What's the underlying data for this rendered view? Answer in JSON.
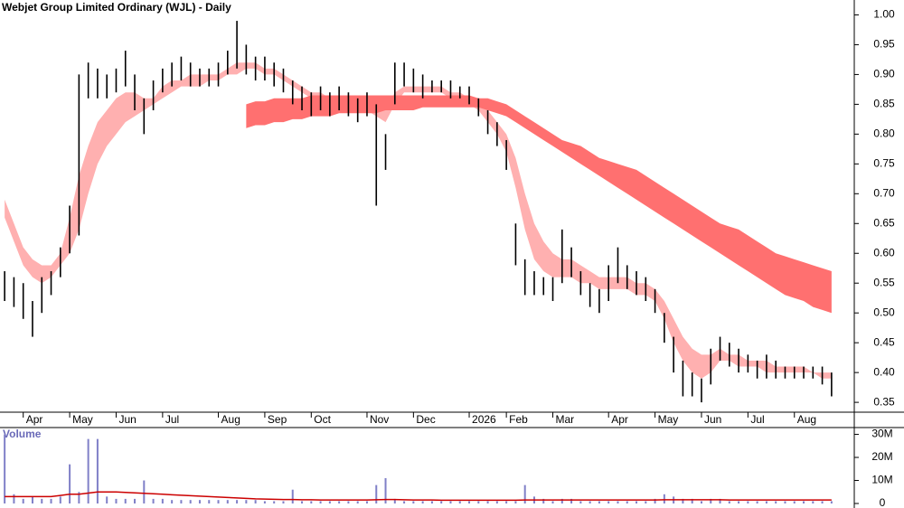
{
  "chart_data": {
    "type": "range_bar",
    "title": "Webjet Group Limited Ordinary (WJL) - Daily",
    "categories": [
      null,
      null,
      "Apr",
      null,
      null,
      null,
      null,
      "May",
      null,
      null,
      null,
      null,
      "Jun",
      null,
      null,
      null,
      null,
      "Jul",
      null,
      null,
      null,
      null,
      null,
      "Aug",
      null,
      null,
      null,
      null,
      "Sep",
      null,
      null,
      null,
      null,
      "Oct",
      null,
      null,
      null,
      null,
      null,
      "Nov",
      null,
      null,
      null,
      null,
      "Dec",
      null,
      null,
      null,
      null,
      null,
      "2026",
      null,
      null,
      null,
      "Feb",
      null,
      null,
      null,
      null,
      "Mar",
      null,
      null,
      null,
      null,
      null,
      "Apr",
      null,
      null,
      null,
      null,
      "May",
      null,
      null,
      null,
      null,
      "Jun",
      null,
      null,
      null,
      null,
      "Jul",
      null,
      null,
      null,
      null,
      "Aug",
      null,
      null,
      null,
      null
    ],
    "high": [
      0.57,
      0.56,
      0.55,
      0.52,
      0.56,
      0.57,
      0.61,
      0.68,
      0.9,
      0.92,
      0.91,
      0.9,
      0.91,
      0.94,
      0.9,
      0.86,
      0.89,
      0.91,
      0.92,
      0.93,
      0.92,
      0.91,
      0.91,
      0.92,
      0.94,
      0.99,
      0.95,
      0.93,
      0.93,
      0.92,
      0.91,
      0.89,
      0.88,
      0.87,
      0.88,
      0.87,
      0.88,
      0.87,
      0.86,
      0.87,
      0.85,
      0.8,
      0.92,
      0.92,
      0.91,
      0.9,
      0.89,
      0.89,
      0.89,
      0.88,
      0.88,
      0.86,
      0.84,
      0.82,
      0.79,
      0.65,
      0.59,
      0.57,
      0.56,
      0.56,
      0.64,
      0.61,
      0.57,
      0.55,
      0.54,
      0.58,
      0.61,
      0.58,
      0.57,
      0.56,
      0.54,
      0.5,
      0.46,
      0.42,
      0.4,
      0.39,
      0.44,
      0.46,
      0.45,
      0.44,
      0.43,
      0.42,
      0.43,
      0.42,
      0.41,
      0.41,
      0.41,
      0.41,
      0.41,
      0.4
    ],
    "low": [
      0.52,
      0.51,
      0.49,
      0.46,
      0.5,
      0.53,
      0.56,
      0.6,
      0.63,
      0.86,
      0.86,
      0.86,
      0.87,
      0.88,
      0.84,
      0.8,
      0.84,
      0.87,
      0.88,
      0.89,
      0.88,
      0.88,
      0.88,
      0.88,
      0.9,
      0.91,
      0.9,
      0.89,
      0.89,
      0.88,
      0.87,
      0.85,
      0.84,
      0.83,
      0.84,
      0.83,
      0.84,
      0.83,
      0.82,
      0.83,
      0.68,
      0.74,
      0.85,
      0.88,
      0.87,
      0.86,
      0.87,
      0.87,
      0.86,
      0.86,
      0.85,
      0.83,
      0.8,
      0.78,
      0.74,
      0.58,
      0.53,
      0.53,
      0.53,
      0.52,
      0.55,
      0.56,
      0.53,
      0.51,
      0.5,
      0.52,
      0.55,
      0.54,
      0.53,
      0.52,
      0.5,
      0.45,
      0.4,
      0.36,
      0.36,
      0.35,
      0.38,
      0.42,
      0.41,
      0.4,
      0.4,
      0.39,
      0.39,
      0.39,
      0.39,
      0.39,
      0.39,
      0.39,
      0.38,
      0.36
    ],
    "color": "#000000",
    "bands": [
      {
        "color": "#ffb0b0",
        "upper": [
          0.69,
          0.65,
          0.61,
          0.59,
          0.58,
          0.58,
          0.6,
          0.66,
          0.73,
          0.78,
          0.82,
          0.84,
          0.86,
          0.87,
          0.87,
          0.86,
          0.86,
          0.88,
          0.89,
          0.89,
          0.9,
          0.9,
          0.9,
          0.9,
          0.91,
          0.92,
          0.92,
          0.92,
          0.91,
          0.91,
          0.9,
          0.89,
          0.88,
          0.87,
          0.87,
          0.86,
          0.86,
          0.86,
          0.85,
          0.85,
          0.84,
          0.84,
          0.87,
          0.88,
          0.88,
          0.88,
          0.88,
          0.88,
          0.87,
          0.87,
          0.86,
          0.85,
          0.84,
          0.82,
          0.8,
          0.76,
          0.7,
          0.65,
          0.62,
          0.6,
          0.59,
          0.59,
          0.58,
          0.57,
          0.56,
          0.56,
          0.56,
          0.56,
          0.55,
          0.55,
          0.54,
          0.52,
          0.49,
          0.46,
          0.44,
          0.43,
          0.43,
          0.44,
          0.43,
          0.43,
          0.42,
          0.42,
          0.42,
          0.41,
          0.41,
          0.41,
          0.41,
          0.4,
          0.4,
          0.4
        ],
        "lower": [
          0.66,
          0.62,
          0.58,
          0.56,
          0.55,
          0.56,
          0.58,
          0.6,
          0.64,
          0.7,
          0.75,
          0.78,
          0.8,
          0.82,
          0.83,
          0.84,
          0.85,
          0.86,
          0.87,
          0.88,
          0.88,
          0.88,
          0.89,
          0.89,
          0.9,
          0.9,
          0.91,
          0.91,
          0.9,
          0.9,
          0.89,
          0.88,
          0.87,
          0.86,
          0.85,
          0.85,
          0.85,
          0.84,
          0.84,
          0.84,
          0.83,
          0.82,
          0.85,
          0.87,
          0.87,
          0.87,
          0.87,
          0.87,
          0.86,
          0.86,
          0.85,
          0.84,
          0.82,
          0.8,
          0.77,
          0.71,
          0.64,
          0.59,
          0.57,
          0.56,
          0.56,
          0.56,
          0.55,
          0.55,
          0.54,
          0.54,
          0.54,
          0.54,
          0.53,
          0.53,
          0.52,
          0.49,
          0.45,
          0.42,
          0.4,
          0.39,
          0.4,
          0.42,
          0.42,
          0.41,
          0.41,
          0.41,
          0.4,
          0.4,
          0.4,
          0.4,
          0.4,
          0.4,
          0.39,
          0.39
        ]
      },
      {
        "color": "#ff7070",
        "upper": [
          null,
          null,
          null,
          null,
          null,
          null,
          null,
          null,
          null,
          null,
          null,
          null,
          null,
          null,
          null,
          null,
          null,
          null,
          null,
          null,
          null,
          null,
          null,
          null,
          null,
          null,
          0.85,
          0.855,
          0.855,
          0.86,
          0.86,
          0.86,
          0.86,
          0.865,
          0.865,
          0.865,
          0.865,
          0.865,
          0.865,
          0.865,
          0.865,
          0.865,
          0.865,
          0.865,
          0.865,
          0.865,
          0.865,
          0.865,
          0.865,
          0.865,
          0.865,
          0.86,
          0.86,
          0.855,
          0.85,
          0.84,
          0.83,
          0.82,
          0.81,
          0.8,
          0.79,
          0.785,
          0.78,
          0.77,
          0.76,
          0.755,
          0.75,
          0.745,
          0.74,
          0.73,
          0.72,
          0.71,
          0.7,
          0.69,
          0.68,
          0.67,
          0.66,
          0.65,
          0.645,
          0.64,
          0.63,
          0.62,
          0.61,
          0.6,
          0.595,
          0.59,
          0.585,
          0.58,
          0.575,
          0.57
        ],
        "lower": [
          null,
          null,
          null,
          null,
          null,
          null,
          null,
          null,
          null,
          null,
          null,
          null,
          null,
          null,
          null,
          null,
          null,
          null,
          null,
          null,
          null,
          null,
          null,
          null,
          null,
          null,
          0.81,
          0.815,
          0.815,
          0.82,
          0.82,
          0.825,
          0.825,
          0.83,
          0.83,
          0.83,
          0.835,
          0.835,
          0.835,
          0.835,
          0.835,
          0.84,
          0.84,
          0.84,
          0.84,
          0.845,
          0.845,
          0.845,
          0.845,
          0.845,
          0.845,
          0.845,
          0.84,
          0.835,
          0.83,
          0.82,
          0.81,
          0.8,
          0.79,
          0.78,
          0.77,
          0.76,
          0.75,
          0.74,
          0.73,
          0.72,
          0.71,
          0.7,
          0.69,
          0.68,
          0.67,
          0.66,
          0.65,
          0.64,
          0.63,
          0.62,
          0.61,
          0.6,
          0.59,
          0.58,
          0.57,
          0.56,
          0.55,
          0.54,
          0.53,
          0.525,
          0.52,
          0.51,
          0.505,
          0.5
        ]
      }
    ],
    "ylim": [
      0.335,
      1.025
    ],
    "yticks": [
      {
        "value": 1.0,
        "label": "1.00"
      },
      {
        "value": 0.95,
        "label": "0.95"
      },
      {
        "value": 0.9,
        "label": "0.90"
      },
      {
        "value": 0.85,
        "label": "0.85"
      },
      {
        "value": 0.8,
        "label": "0.80"
      },
      {
        "value": 0.75,
        "label": "0.75"
      },
      {
        "value": 0.7,
        "label": "0.70"
      },
      {
        "value": 0.65,
        "label": "0.65"
      },
      {
        "value": 0.6,
        "label": "0.60"
      },
      {
        "value": 0.55,
        "label": "0.55"
      },
      {
        "value": 0.5,
        "label": "0.50"
      },
      {
        "value": 0.45,
        "label": "0.45"
      },
      {
        "value": 0.4,
        "label": "0.40"
      },
      {
        "value": 0.35,
        "label": "0.35"
      }
    ],
    "volume_label": "Volume",
    "volume": [
      30,
      4,
      2,
      3,
      2,
      2,
      3,
      17,
      5,
      28,
      28,
      3,
      2,
      2,
      2,
      10,
      2,
      2,
      1.5,
      1.5,
      1.5,
      1.5,
      1.5,
      1.5,
      1.5,
      1.5,
      1.5,
      1.5,
      1,
      1,
      1,
      6,
      1,
      1,
      1,
      1,
      1,
      1,
      1,
      1,
      8,
      11,
      2,
      1,
      1,
      1,
      1,
      1,
      1,
      1,
      1,
      1,
      1,
      1,
      1,
      1,
      8,
      3,
      2,
      1,
      2,
      2,
      1,
      1,
      1,
      1,
      1,
      1,
      1,
      1,
      2,
      4,
      3,
      2,
      2,
      1,
      2,
      2,
      1,
      1,
      1,
      1,
      1,
      1,
      1,
      1,
      1,
      1,
      1,
      1
    ],
    "volume_color": "#8080c8",
    "volume_ma": [
      3,
      3,
      3,
      3,
      3,
      3,
      3.5,
      4,
      4,
      4.5,
      5,
      5,
      5,
      4.8,
      4.6,
      4.4,
      4.2,
      4,
      3.8,
      3.6,
      3.4,
      3.2,
      3,
      2.8,
      2.6,
      2.4,
      2.2,
      2,
      1.9,
      1.8,
      1.7,
      1.7,
      1.6,
      1.6,
      1.5,
      1.5,
      1.5,
      1.5,
      1.5,
      1.5,
      1.6,
      1.7,
      1.7,
      1.6,
      1.5,
      1.5,
      1.5,
      1.4,
      1.4,
      1.4,
      1.4,
      1.4,
      1.4,
      1.4,
      1.4,
      1.4,
      1.5,
      1.5,
      1.5,
      1.5,
      1.5,
      1.5,
      1.5,
      1.5,
      1.5,
      1.5,
      1.5,
      1.5,
      1.5,
      1.5,
      1.5,
      1.6,
      1.6,
      1.6,
      1.6,
      1.6,
      1.6,
      1.6,
      1.5,
      1.5,
      1.5,
      1.5,
      1.5,
      1.5,
      1.5,
      1.5,
      1.5,
      1.5,
      1.5,
      1.5
    ],
    "volume_ma_color": "#cc0000",
    "vlim": [
      0,
      31
    ],
    "vticks": [
      0,
      {
        "value": 10,
        "label": "10M"
      },
      {
        "value": 20,
        "label": "20M"
      },
      {
        "value": 30,
        "label": "30M"
      }
    ]
  }
}
